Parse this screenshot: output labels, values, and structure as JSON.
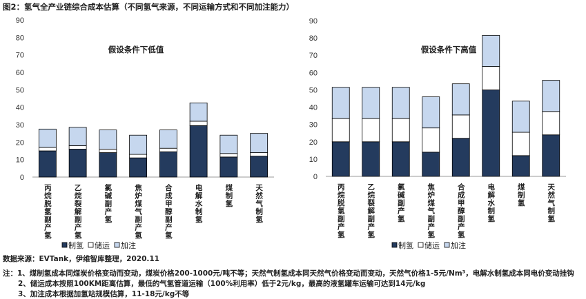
{
  "title": "图2：氢气全产业链综合成本估算（不同氢气来源，不同运输方式和不同加注能力）",
  "chart_data": [
    {
      "type": "bar",
      "stacked": true,
      "title": "假设条件下低值",
      "categories": [
        "丙烷脱氢副产氢",
        "乙烷裂解副产氢",
        "氯碱副产氢",
        "焦炉煤气副产氢",
        "合成甲醇副产氢",
        "电解水制氢",
        "煤制氢",
        "天然气制氢"
      ],
      "series": [
        {
          "name": "制氢",
          "color": "#243b5e",
          "values": [
            15,
            16,
            14,
            11,
            14.5,
            29.5,
            11.5,
            12
          ]
        },
        {
          "name": "储运",
          "color": "#ffffff",
          "values": [
            2,
            2,
            2,
            2,
            2,
            2.5,
            2,
            2
          ]
        },
        {
          "name": "加注",
          "color": "#c6d7ee",
          "values": [
            10.5,
            10.5,
            11,
            11,
            10.5,
            10.5,
            10.5,
            11
          ]
        }
      ],
      "ylim": [
        0,
        90
      ],
      "yticks": [
        0,
        10,
        20,
        30,
        40,
        50,
        60,
        70,
        80,
        90
      ],
      "legend": "bottom",
      "grid": false
    },
    {
      "type": "bar",
      "stacked": true,
      "title": "假设条件下高值",
      "categories": [
        "丙烷脱氢副产氢",
        "乙烷裂解副产氢",
        "氯碱副产氢",
        "焦炉煤气副产氢",
        "合成甲醇副产氢",
        "电解水制氢",
        "煤制氢",
        "天然气制氢"
      ],
      "series": [
        {
          "name": "制氢",
          "color": "#243b5e",
          "values": [
            20,
            20,
            20,
            14,
            22,
            50,
            12,
            24
          ]
        },
        {
          "name": "储运",
          "color": "#ffffff",
          "values": [
            13.5,
            13.5,
            13.5,
            14,
            13.5,
            13.5,
            13.5,
            13.5
          ]
        },
        {
          "name": "加注",
          "color": "#c6d7ee",
          "values": [
            18,
            18,
            18,
            18,
            18,
            18,
            18,
            18
          ]
        }
      ],
      "ylim": [
        0,
        90
      ],
      "yticks": [
        0,
        10,
        20,
        30,
        40,
        50,
        60,
        70,
        80,
        90
      ],
      "legend": "bottom",
      "grid": false
    }
  ],
  "source": "数据来源：EVTank，伊维智库整理，2020.11",
  "notes": [
    "注：1、煤制氢成本同煤炭价格变动而变动，煤炭价格200-1000元/吨不等；天然气制氢成本同天然气价格变动而变动，天然气价格1-5元/Nm³，电解水制氢成本同电价变动挂钩",
    "2、储运成本按照100KM距离估算，最低的气氢管道运输（100%利用率）低于2元/kg，最高的液氢罐车运输可达到14元/kg",
    "3、加注成本根据加氢站规模估算，11-18元/kg不等"
  ]
}
